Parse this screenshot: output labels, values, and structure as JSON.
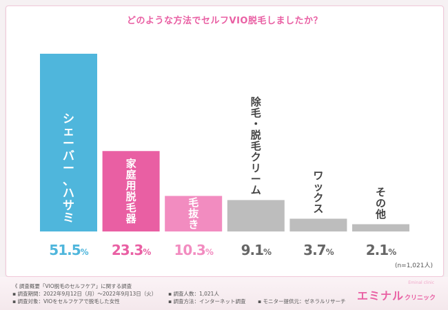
{
  "chart_data": {
    "type": "bar",
    "title": "どのような方法でセルフVIO脱毛しましたか？",
    "categories": [
      "シェーバー、ハサミ",
      "家庭用脱毛器",
      "毛抜き",
      "除毛・脱毛クリーム",
      "ワックス",
      "その他"
    ],
    "values": [
      51.5,
      23.3,
      10.3,
      9.1,
      3.7,
      2.1
    ],
    "value_labels": [
      "51.5",
      "23.3",
      "10.3",
      "9.1",
      "3.7",
      "2.1"
    ],
    "unit": "%",
    "ylim": [
      0,
      51.5
    ],
    "grid": false,
    "colors": [
      "#4fb6dc",
      "#e95fa3",
      "#f28cc0",
      "#bdbdbd",
      "#bdbdbd",
      "#bdbdbd"
    ],
    "value_colors": [
      "#4fb6dc",
      "#e95fa3",
      "#f28cc0",
      "#666666",
      "#666666",
      "#666666"
    ],
    "note": "(n=1,021人)"
  },
  "footer": {
    "summary_heading": "《 調査概要「VIO脱毛のセルフケア」に関する調査",
    "period": "▪ 調査期間：2022年9月12日（月）～2022年9月13日（火）",
    "target": "▪ 調査対象：VIOをセルフケアで脱毛した女性",
    "count": "▪ 調査人数：1,021人",
    "method": "▪ 調査方法：インターネット調査",
    "provider": "▪ モニター提供元：ゼネラルリサーチ"
  },
  "logo": {
    "main": "エミナル",
    "sub": "クリニック",
    "tiny": "Eminal clinic"
  }
}
